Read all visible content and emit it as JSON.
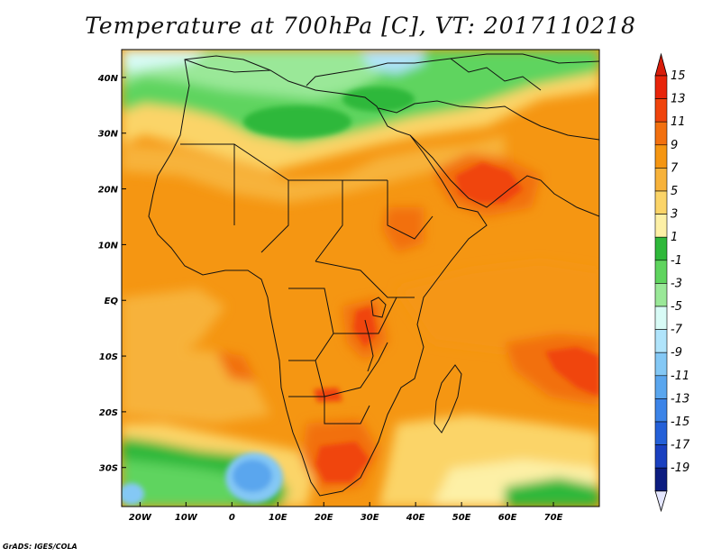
{
  "title": "Temperature at 700hPa [C], VT: 2017110218",
  "credit": "GrADS: IGES/COLA",
  "map": {
    "projection": "lat-lon",
    "lon_range": [
      -24,
      80
    ],
    "lat_range": [
      -37,
      45
    ],
    "lon_ticks": [
      {
        "value": -20,
        "label": "20W"
      },
      {
        "value": -10,
        "label": "10W"
      },
      {
        "value": 0,
        "label": "0"
      },
      {
        "value": 10,
        "label": "10E"
      },
      {
        "value": 20,
        "label": "20E"
      },
      {
        "value": 30,
        "label": "30E"
      },
      {
        "value": 40,
        "label": "40E"
      },
      {
        "value": 50,
        "label": "50E"
      },
      {
        "value": 60,
        "label": "60E"
      },
      {
        "value": 70,
        "label": "70E"
      }
    ],
    "lat_ticks": [
      {
        "value": 40,
        "label": "40N"
      },
      {
        "value": 30,
        "label": "30N"
      },
      {
        "value": 20,
        "label": "20N"
      },
      {
        "value": 10,
        "label": "10N"
      },
      {
        "value": 0,
        "label": "EQ"
      },
      {
        "value": -10,
        "label": "10S"
      },
      {
        "value": -20,
        "label": "20S"
      },
      {
        "value": -30,
        "label": "30S"
      }
    ]
  },
  "colorbar": {
    "labels": [
      "15",
      "13",
      "11",
      "9",
      "7",
      "5",
      "3",
      "1",
      "-1",
      "-3",
      "-5",
      "-7",
      "-9",
      "-11",
      "-13",
      "-15",
      "-17",
      "-19"
    ],
    "colors": [
      "#e8240a",
      "#f0440c",
      "#f2700f",
      "#f59612",
      "#f7b23a",
      "#fbd468",
      "#fdf0a6",
      "#2fb83a",
      "#5fd45e",
      "#9ae898",
      "#d8fbf6",
      "#b0e4fb",
      "#84c8f5",
      "#5aa6ee",
      "#3c84e8",
      "#2460d8",
      "#1a40c0",
      "#0c1c80"
    ],
    "top_color": "#d81c0a",
    "bottom_color": "#e4e6fe"
  },
  "regions": [
    {
      "name": "warm-arabia",
      "color": "#f0440c",
      "lon": 55,
      "lat": 21
    },
    {
      "name": "warm-south-africa",
      "color": "#f0440c",
      "lon": 26,
      "lat": -29
    },
    {
      "name": "warm-east-africa-lakes",
      "color": "#f0440c",
      "lon": 32,
      "lat": -5
    },
    {
      "name": "warm-indian-ocean",
      "color": "#f0440c",
      "lon": 77,
      "lat": -12
    },
    {
      "name": "cold-south-atlantic-low",
      "color": "#5aa6ee",
      "lon": 4,
      "lat": -30
    },
    {
      "name": "cool-mediterranean",
      "color": "#5fd45e",
      "lon": 18,
      "lat": 36
    }
  ]
}
